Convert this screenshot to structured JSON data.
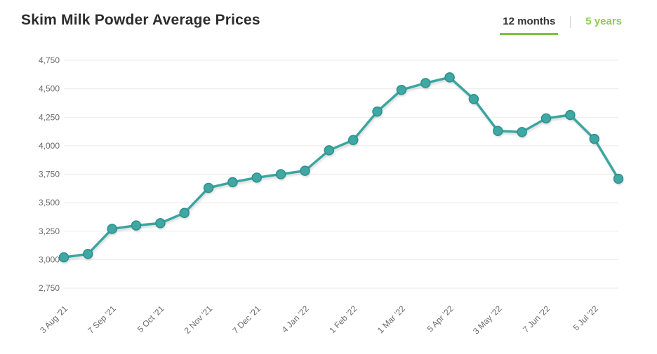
{
  "header": {
    "title": "Skim Milk Powder Average Prices",
    "tabs": [
      {
        "label": "12 months",
        "active": true
      },
      {
        "label": "5 years",
        "active": false
      }
    ],
    "active_tab": "12 months"
  },
  "colors": {
    "title_text": "#2d2d2d",
    "tab_active_text": "#333333",
    "tab_active_underline": "#7cc242",
    "tab_inactive_text": "#8ccf52",
    "line": "#3aa5a1",
    "marker_fill": "#3fa8a4",
    "marker_stroke": "#2e8f8b",
    "grid": "#eaeaea",
    "axis_text": "#6b6b6b"
  },
  "chart_data": {
    "type": "line",
    "title": "Skim Milk Powder Average Prices",
    "x_tick_labels": [
      "3 Aug '21",
      "7 Sep '21",
      "5 Oct '21",
      "2 Nov '21",
      "7 Dec '21",
      "4 Jan '22",
      "1 Feb '22",
      "1 Mar '22",
      "5 Apr '22",
      "3 May '22",
      "7 Jun '22",
      "5 Jul '22"
    ],
    "tick_every": 2,
    "values": [
      3020,
      3050,
      3270,
      3300,
      3320,
      3410,
      3630,
      3680,
      3720,
      3750,
      3780,
      3960,
      4050,
      4300,
      4490,
      4550,
      4600,
      4410,
      4130,
      4120,
      4240,
      4270,
      4060,
      3710
    ],
    "ylim": [
      2750,
      4750
    ],
    "y_tick_step": 250,
    "y_tick_labels": [
      "2,750",
      "3,000",
      "3,250",
      "3,500",
      "3,750",
      "4,000",
      "4,250",
      "4,500",
      "4,750"
    ],
    "grid": "horizontal-only",
    "legend": "none",
    "marker": "circle"
  }
}
